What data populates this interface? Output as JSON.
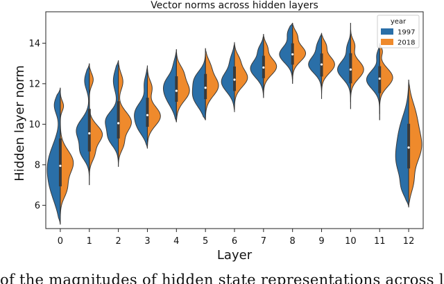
{
  "chart_data": {
    "type": "violin",
    "title": "Vector norms across hidden layers",
    "xlabel": "Layer",
    "ylabel": "Hidden layer norm",
    "categories": [
      "0",
      "1",
      "2",
      "3",
      "4",
      "5",
      "6",
      "7",
      "8",
      "9",
      "10",
      "11",
      "12"
    ],
    "ylim": [
      4.85,
      15.55
    ],
    "yticks": [
      6,
      8,
      10,
      12,
      14
    ],
    "split": true,
    "grid": false,
    "legend": {
      "title": "year",
      "position": "top-right",
      "entries": [
        "1997",
        "2018"
      ]
    },
    "colors": {
      "1997": "#2a6fa8",
      "2018": "#ef8a2c"
    },
    "series": [
      {
        "name": "1997",
        "color": "#2a6fa8",
        "violins": [
          {
            "min": 5.05,
            "max": 11.8,
            "median": 7.95,
            "modes": [
              [
                6.7,
                0.82,
                0.45
              ],
              [
                8.1,
                0.95,
                0.85
              ],
              [
                10.95,
                0.45,
                0.45
              ]
            ]
          },
          {
            "min": 7.0,
            "max": 13.0,
            "median": 9.55,
            "modes": [
              [
                8.6,
                0.4,
                0.55
              ],
              [
                9.7,
                0.55,
                0.95
              ],
              [
                12.15,
                0.45,
                0.35
              ]
            ]
          },
          {
            "min": 7.9,
            "max": 13.15,
            "median": 10.05,
            "modes": [
              [
                9.3,
                0.4,
                0.6
              ],
              [
                10.2,
                0.45,
                0.85
              ],
              [
                12.15,
                0.55,
                0.35
              ]
            ]
          },
          {
            "min": 8.8,
            "max": 12.9,
            "median": 10.45,
            "modes": [
              [
                9.8,
                0.42,
                0.55
              ],
              [
                10.6,
                0.5,
                0.95
              ],
              [
                12.0,
                0.38,
                0.25
              ]
            ]
          },
          {
            "min": 10.1,
            "max": 13.7,
            "median": 11.65,
            "modes": [
              [
                11.4,
                0.55,
                0.9
              ],
              [
                12.1,
                0.45,
                0.7
              ],
              [
                13.0,
                0.3,
                0.18
              ]
            ]
          },
          {
            "min": 10.2,
            "max": 13.75,
            "median": 11.8,
            "modes": [
              [
                11.4,
                0.55,
                0.95
              ],
              [
                12.3,
                0.4,
                0.6
              ]
            ]
          },
          {
            "min": 10.6,
            "max": 14.05,
            "median": 12.2,
            "modes": [
              [
                12.1,
                0.5,
                1.0
              ],
              [
                13.2,
                0.35,
                0.25
              ]
            ]
          },
          {
            "min": 11.3,
            "max": 14.45,
            "median": 12.8,
            "modes": [
              [
                12.75,
                0.45,
                1.0
              ],
              [
                13.7,
                0.28,
                0.3
              ]
            ]
          },
          {
            "min": 12.0,
            "max": 15.0,
            "median": 13.45,
            "modes": [
              [
                13.45,
                0.42,
                1.0
              ],
              [
                14.5,
                0.3,
                0.35
              ]
            ]
          },
          {
            "min": 11.25,
            "max": 14.5,
            "median": 12.95,
            "modes": [
              [
                12.95,
                0.42,
                1.0
              ],
              [
                13.9,
                0.3,
                0.3
              ]
            ]
          },
          {
            "min": 10.75,
            "max": 15.0,
            "median": 12.7,
            "modes": [
              [
                12.7,
                0.45,
                1.0
              ],
              [
                13.8,
                0.3,
                0.25
              ]
            ]
          },
          {
            "min": 10.2,
            "max": 14.0,
            "median": 12.25,
            "modes": [
              [
                12.2,
                0.45,
                1.0
              ],
              [
                13.4,
                0.25,
                0.2
              ]
            ]
          },
          {
            "min": 5.9,
            "max": 12.2,
            "median": 8.85,
            "modes": [
              [
                8.2,
                0.9,
                0.95
              ],
              [
                9.8,
                0.8,
                0.55
              ],
              [
                6.8,
                0.4,
                0.3
              ]
            ]
          }
        ]
      },
      {
        "name": "2018",
        "color": "#ef8a2c",
        "violins": [
          {
            "min": 5.05,
            "max": 11.8,
            "median": 7.95,
            "modes": [
              [
                8.1,
                0.6,
                1.0
              ],
              [
                6.8,
                0.45,
                0.45
              ],
              [
                10.9,
                0.25,
                0.25
              ]
            ]
          },
          {
            "min": 7.0,
            "max": 13.0,
            "median": 9.55,
            "modes": [
              [
                9.5,
                0.45,
                1.0
              ],
              [
                12.2,
                0.3,
                0.3
              ],
              [
                8.5,
                0.35,
                0.35
              ]
            ]
          },
          {
            "min": 7.9,
            "max": 13.15,
            "median": 10.05,
            "modes": [
              [
                10.1,
                0.5,
                1.0
              ],
              [
                12.1,
                0.4,
                0.35
              ],
              [
                9.0,
                0.35,
                0.35
              ]
            ]
          },
          {
            "min": 8.8,
            "max": 12.9,
            "median": 10.45,
            "modes": [
              [
                10.4,
                0.48,
                1.0
              ],
              [
                11.8,
                0.35,
                0.35
              ]
            ]
          },
          {
            "min": 10.1,
            "max": 13.7,
            "median": 11.65,
            "modes": [
              [
                11.65,
                0.5,
                1.0
              ],
              [
                12.6,
                0.35,
                0.4
              ]
            ]
          },
          {
            "min": 10.2,
            "max": 13.75,
            "median": 11.8,
            "modes": [
              [
                11.9,
                0.5,
                1.0
              ],
              [
                12.9,
                0.35,
                0.3
              ]
            ]
          },
          {
            "min": 10.6,
            "max": 14.05,
            "median": 12.2,
            "modes": [
              [
                12.3,
                0.45,
                1.0
              ],
              [
                13.2,
                0.3,
                0.3
              ]
            ]
          },
          {
            "min": 11.3,
            "max": 14.45,
            "median": 12.8,
            "modes": [
              [
                12.85,
                0.42,
                1.0
              ],
              [
                13.8,
                0.25,
                0.25
              ]
            ]
          },
          {
            "min": 12.0,
            "max": 15.0,
            "median": 13.45,
            "modes": [
              [
                13.5,
                0.4,
                1.0
              ],
              [
                14.4,
                0.25,
                0.3
              ]
            ]
          },
          {
            "min": 11.25,
            "max": 14.5,
            "median": 12.95,
            "modes": [
              [
                12.95,
                0.42,
                1.0
              ],
              [
                13.9,
                0.25,
                0.3
              ]
            ]
          },
          {
            "min": 10.75,
            "max": 15.0,
            "median": 12.7,
            "modes": [
              [
                12.7,
                0.45,
                1.0
              ],
              [
                13.9,
                0.28,
                0.3
              ]
            ]
          },
          {
            "min": 10.2,
            "max": 14.0,
            "median": 12.25,
            "modes": [
              [
                12.3,
                0.45,
                1.0
              ],
              [
                13.6,
                0.2,
                0.2
              ]
            ]
          },
          {
            "min": 5.9,
            "max": 12.2,
            "median": 8.85,
            "modes": [
              [
                8.9,
                0.85,
                1.0
              ],
              [
                10.5,
                0.7,
                0.45
              ],
              [
                7.1,
                0.5,
                0.3
              ]
            ]
          }
        ]
      }
    ]
  },
  "caption_fragment": "of the magnitudes of hidden state representations across layers"
}
